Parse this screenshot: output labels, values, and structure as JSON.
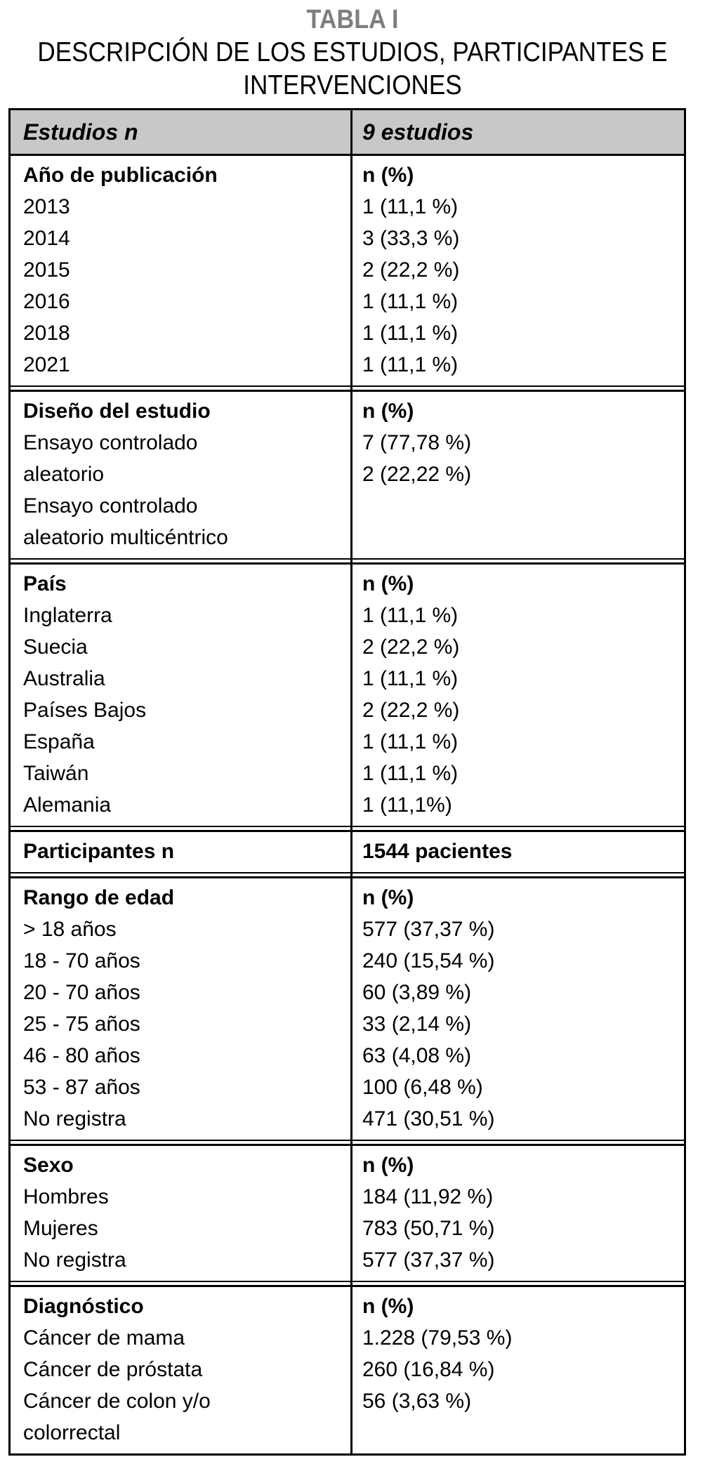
{
  "caption": {
    "label": "TABLA I",
    "title_lines": [
      "DESCRIPCIÓN DE LOS ESTUDIOS, PARTICIPANTES E",
      "INTERVENCIONES"
    ]
  },
  "table": {
    "header": {
      "left": "Estudios n",
      "right": "9 estudios"
    },
    "sections": [
      {
        "left_lines": [
          "Año de publicación",
          "2013",
          "2014",
          "2015",
          "2016",
          "2018",
          "2021"
        ],
        "right_lines": [
          "n (%)",
          "1 (11,1 %)",
          "3 (33,3 %)",
          "2 (22,2 %)",
          "1 (11,1 %)",
          "1 (11,1 %)",
          "1 (11,1 %)"
        ]
      },
      {
        "left_lines": [
          "Diseño del estudio",
          "Ensayo controlado",
          "aleatorio",
          "Ensayo controlado",
          "aleatorio multicéntrico"
        ],
        "right_lines": [
          "n (%)",
          "7 (77,78 %)",
          "2 (22,22 %)"
        ]
      },
      {
        "left_lines": [
          "País",
          "Inglaterra",
          "Suecia",
          "Australia",
          "Países Bajos",
          "España",
          "Taiwán",
          "Alemania"
        ],
        "right_lines": [
          "n (%)",
          "1 (11,1 %)",
          "2 (22,2 %)",
          "1 (11,1 %)",
          "2 (22,2 %)",
          "1 (11,1 %)",
          "1 (11,1 %)",
          "1 (11,1%)"
        ]
      },
      {
        "left_lines": [
          "Participantes n"
        ],
        "right_lines": [
          "1544 pacientes"
        ]
      },
      {
        "left_lines": [
          "Rango de edad",
          "> 18 años",
          "18 - 70 años",
          "20 - 70 años",
          "25 - 75 años",
          "46 - 80 años",
          "53 - 87 años",
          "No registra"
        ],
        "right_lines": [
          "n (%)",
          "577 (37,37 %)",
          "240 (15,54 %)",
          "60 (3,89 %)",
          "33 (2,14 %)",
          "63 (4,08 %)",
          "100 (6,48 %)",
          "471 (30,51 %)"
        ]
      },
      {
        "left_lines": [
          "Sexo",
          "Hombres",
          "Mujeres",
          "No registra"
        ],
        "right_lines": [
          "n (%)",
          "184 (11,92 %)",
          "783 (50,71 %)",
          "577 (37,37 %)"
        ]
      },
      {
        "left_lines": [
          "Diagnóstico",
          "Cáncer de mama",
          "Cáncer de próstata",
          "Cáncer de colon y/o",
          "colorrectal"
        ],
        "right_lines": [
          "n (%)",
          "1.228 (79,53 %)",
          "260 (16,84 %)",
          "56 (3,63 %)"
        ]
      }
    ]
  },
  "colors": {
    "header_bg": "#c8c8c8",
    "caption_gray": "#7e7e7e",
    "border": "#000000",
    "text": "#000000"
  }
}
